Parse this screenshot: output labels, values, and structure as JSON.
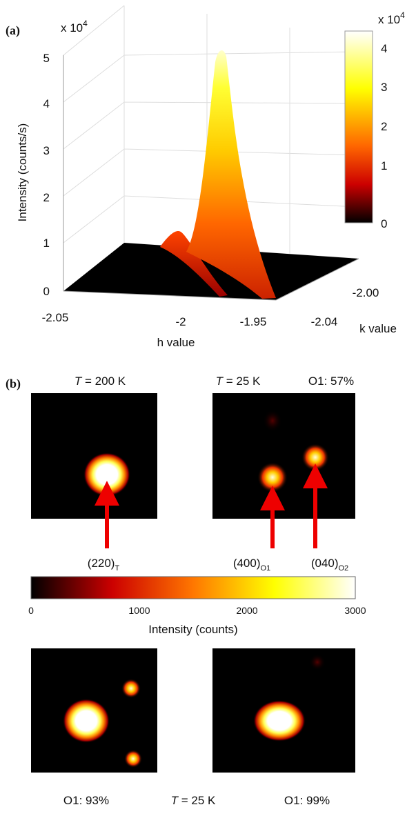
{
  "panel_a": {
    "label": "(a)",
    "z_multiplier": "x 10",
    "z_exponent": "4",
    "z_label": "Intensity  (counts/s)",
    "z_ticks": [
      0,
      1,
      2,
      3,
      4,
      5
    ],
    "h_ticks": [
      -2.05,
      -2,
      -1.95
    ],
    "h_label": "h value",
    "k_ticks": [
      "-2.04",
      "-2.00"
    ],
    "k_label": "k value",
    "colorbar": {
      "multiplier": "x 10",
      "exponent": "4",
      "ticks": [
        0,
        1,
        2,
        3,
        4
      ]
    }
  },
  "panel_b": {
    "label": "(b)",
    "top_left": {
      "title_var": "T",
      "title_rest": " = 200 K",
      "peak": {
        "text": "(220)",
        "sub": "T"
      }
    },
    "top_right": {
      "title_var": "T",
      "title_rest": " = 25 K",
      "fraction": "O1: 57%",
      "peaks": [
        {
          "text": "(400)",
          "sub": "O1"
        },
        {
          "text": "(040)",
          "sub": "O2"
        }
      ]
    },
    "colorbar": {
      "ticks": [
        0,
        1000,
        2000,
        3000
      ],
      "label": "Intensity  (counts)"
    },
    "bottom": {
      "left": "O1: 93%",
      "middle_var": "T",
      "middle_rest": " = 25 K",
      "right": "O1: 99%"
    }
  }
}
